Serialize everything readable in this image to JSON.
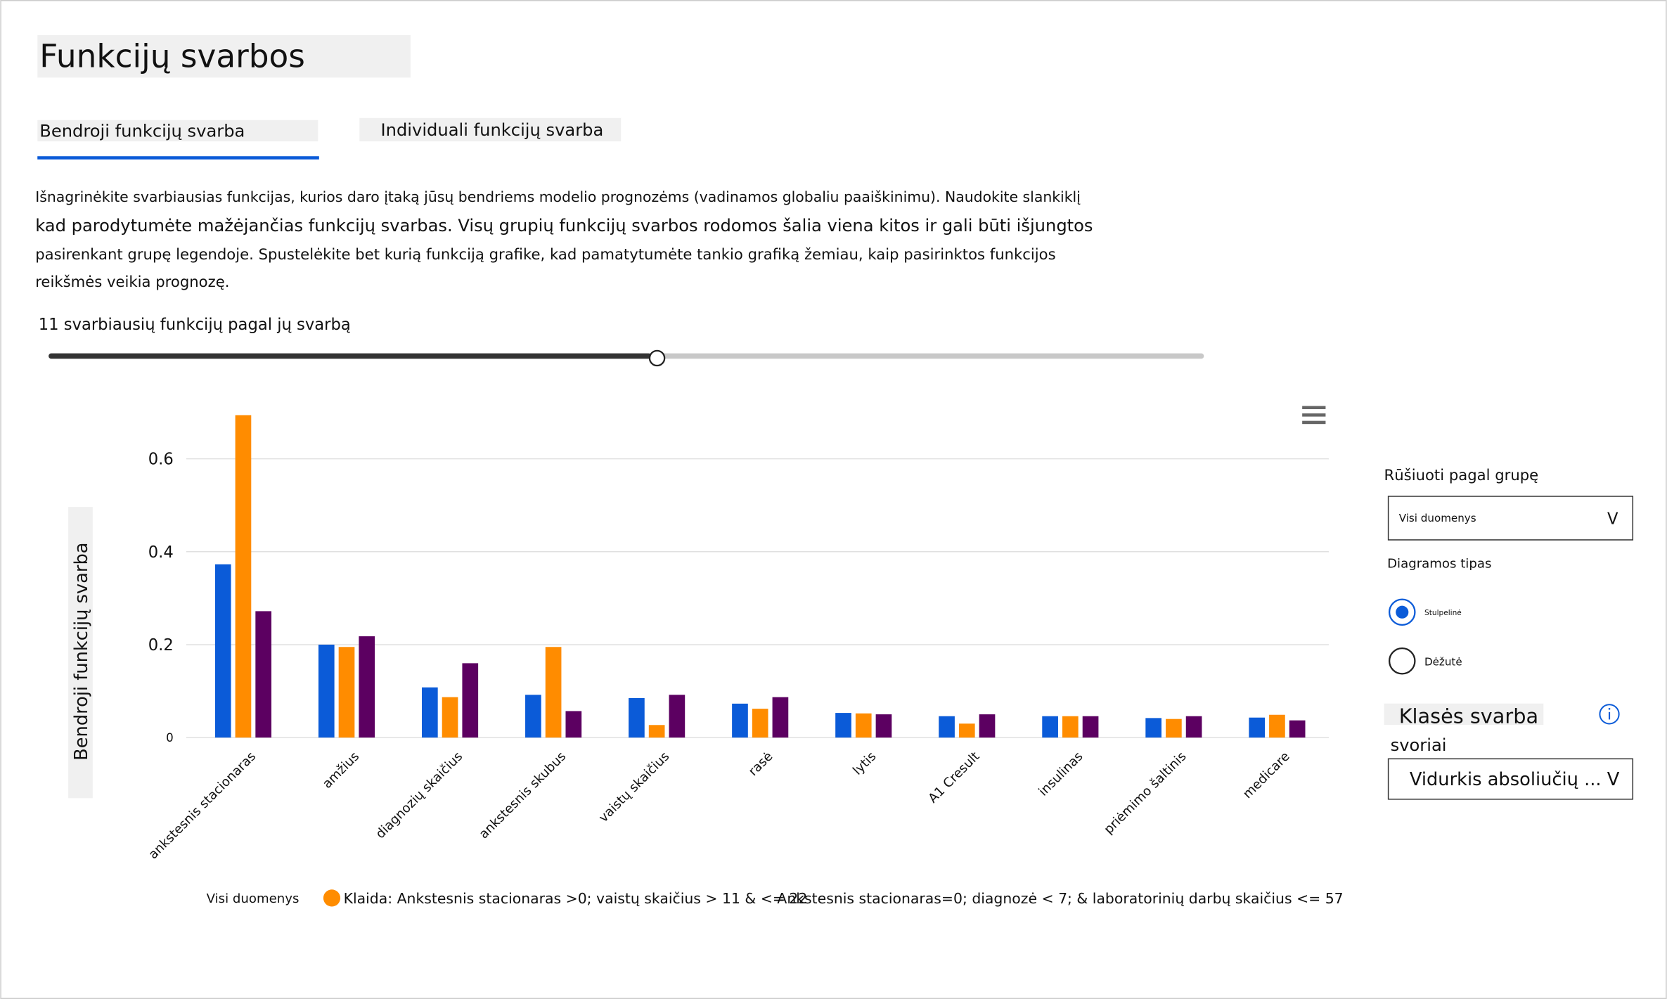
{
  "header": {
    "title": "Funkcijų svarbos"
  },
  "tabs": [
    "Bendroji funkcijų svarba",
    "Individuali funkcijų svarba"
  ],
  "description": [
    "Išnagrinėkite svarbiausias funkcijas, kurios daro įtaką jūsų bendriems modelio prognozėms (vadinamos globaliu paaiškinimu). Naudokite slankiklį",
    "kad parodytumėte mažėjančias funkcijų svarbas. Visų grupių funkcijų svarbos rodomos šalia viena kitos ir gali būti išjungtos",
    "pasirenkant grupę legendoje. Spustelėkite bet kurią funkciją grafike, kad pamatytumėte tankio grafiką žemiau, kaip pasirinktos funkcijos",
    "reikšmės veikia prognozę."
  ],
  "slider": {
    "label": "11 svarbiausių funkcijų pagal jų svarbą"
  },
  "chart_data": {
    "type": "bar",
    "y_label": "Bendroji funkcijų svarba",
    "categories": [
      "ankstesnis stacionaras",
      "amžius",
      "diagnozių skaičius",
      "ankstesnis skubus",
      "vaistų skaičius",
      "rasė",
      "lytis",
      "A1 Cresult",
      "insulinas",
      "priėmimo šaltinis",
      "medicare"
    ],
    "series": [
      {
        "name": "Visi duomenys",
        "color": "#0b5bd8",
        "values": [
          0.373,
          0.2,
          0.108,
          0.092,
          0.085,
          0.073,
          0.053,
          0.046,
          0.046,
          0.042,
          0.043
        ]
      },
      {
        "name": "Klaida: Ankstesnis stacionaras >0; vaistų skaičius > 11 & <= 22",
        "color": "#ff8c00",
        "values": [
          0.694,
          0.195,
          0.087,
          0.195,
          0.027,
          0.062,
          0.052,
          0.03,
          0.046,
          0.04,
          0.049
        ]
      },
      {
        "name": "Ankstesnis stacionaras=0; diagnozė < 7; & laboratorinių darbų skaičius <= 57",
        "color": "#5c0061",
        "values": [
          0.272,
          0.218,
          0.16,
          0.057,
          0.092,
          0.087,
          0.05,
          0.05,
          0.046,
          0.046,
          0.037
        ]
      }
    ],
    "ylim": [
      0,
      0.7
    ],
    "yticks": [
      0,
      0.2,
      0.4,
      0.6
    ],
    "grid": true
  },
  "controls": {
    "sort_label": "Rūšiuoti pagal grupę",
    "sort_value": "Visi duomenys",
    "sort_arrow": "V",
    "chart_type_label": "Diagramos tipas",
    "chart_types": [
      "Stulpelinė",
      "Dėžutė"
    ],
    "class_weight_label": [
      "Klasės svarba",
      "svoriai"
    ],
    "class_weight_value": "Vidurkis absoliučių ... V"
  }
}
